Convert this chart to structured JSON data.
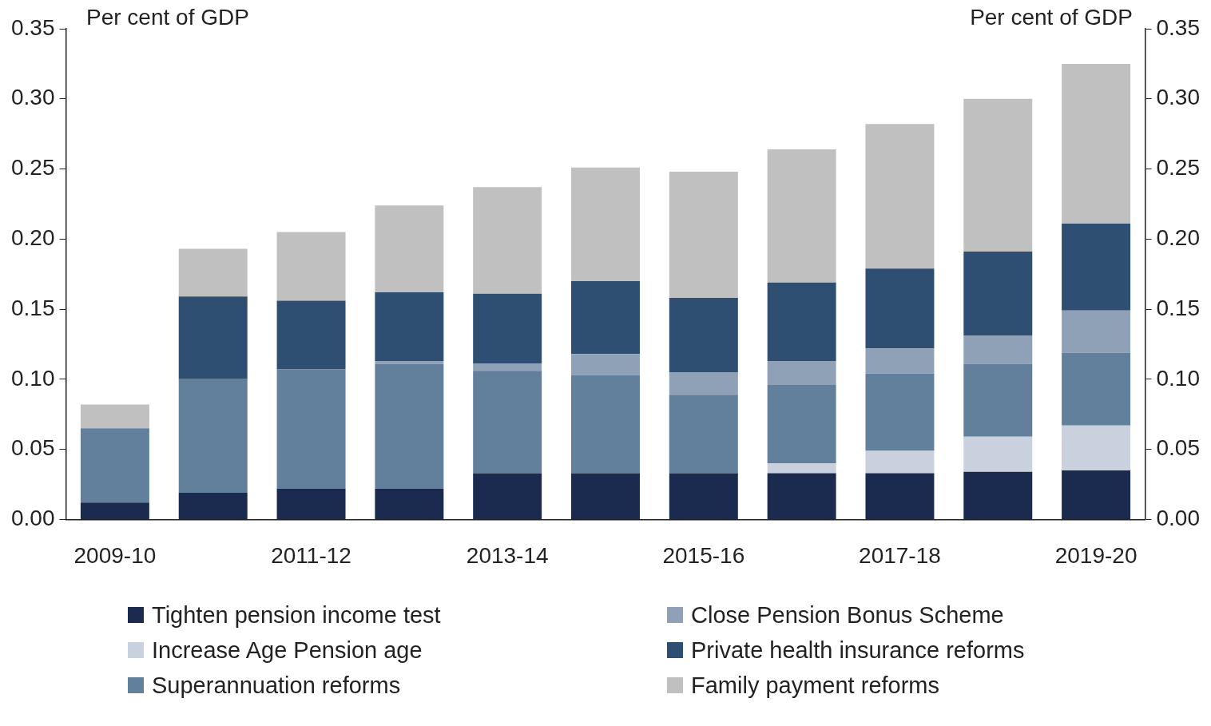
{
  "chart_data": {
    "type": "bar",
    "stacked": true,
    "ylabel": "Per cent of GDP",
    "y2label": "Per cent of GDP",
    "categories": [
      "2009-10",
      null,
      "2011-12",
      null,
      "2013-14",
      null,
      "2015-16",
      null,
      "2017-18",
      null,
      "2019-20"
    ],
    "ylim": [
      0,
      0.35
    ],
    "yticks": [
      {
        "value": 0,
        "label": "0.00"
      },
      {
        "value": 0.05,
        "label": "0.05"
      },
      {
        "value": 0.1,
        "label": "0.10"
      },
      {
        "value": 0.15,
        "label": "0.15"
      },
      {
        "value": 0.2,
        "label": "0.20"
      },
      {
        "value": 0.25,
        "label": "0.25"
      },
      {
        "value": 0.3,
        "label": "0.30"
      },
      {
        "value": 0.35,
        "label": "0.35"
      }
    ],
    "y2lim": [
      0,
      0.35
    ],
    "y2ticks": [
      {
        "value": 0,
        "label": "0.00"
      },
      {
        "value": 0.05,
        "label": "0.05"
      },
      {
        "value": 0.1,
        "label": "0.10"
      },
      {
        "value": 0.15,
        "label": "0.15"
      },
      {
        "value": 0.2,
        "label": "0.20"
      },
      {
        "value": 0.25,
        "label": "0.25"
      },
      {
        "value": 0.3,
        "label": "0.30"
      },
      {
        "value": 0.35,
        "label": "0.35"
      }
    ],
    "grid": false,
    "legend": "bottom",
    "series": [
      {
        "name": "Tighten pension income test",
        "color": "#1b2b4f",
        "values": [
          0.012,
          0.019,
          0.022,
          0.022,
          0.033,
          0.033,
          0.033,
          0.033,
          0.033,
          0.034,
          0.035
        ]
      },
      {
        "name": "Increase Age Pension age",
        "color": "#c8d1dd",
        "values": [
          0,
          0,
          0,
          0,
          0,
          0,
          0,
          0.007,
          0.016,
          0.025,
          0.032
        ]
      },
      {
        "name": "Superannuation reforms",
        "color": "#627f9c",
        "values": [
          0.053,
          0.081,
          0.085,
          0.089,
          0.073,
          0.07,
          0.056,
          0.056,
          0.055,
          0.052,
          0.052
        ]
      },
      {
        "name": "Close Pension Bonus Scheme",
        "color": "#8fa1b7",
        "values": [
          0,
          0,
          0,
          0.002,
          0.005,
          0.015,
          0.016,
          0.017,
          0.018,
          0.02,
          0.03
        ]
      },
      {
        "name": "Private health insurance reforms",
        "color": "#2f4f72",
        "values": [
          0,
          0.059,
          0.049,
          0.049,
          0.05,
          0.052,
          0.053,
          0.056,
          0.057,
          0.06,
          0.062
        ]
      },
      {
        "name": "Family payment reforms",
        "color": "#c0c0c0",
        "values": [
          0.017,
          0.034,
          0.049,
          0.062,
          0.076,
          0.081,
          0.09,
          0.095,
          0.103,
          0.109,
          0.114
        ]
      }
    ]
  }
}
